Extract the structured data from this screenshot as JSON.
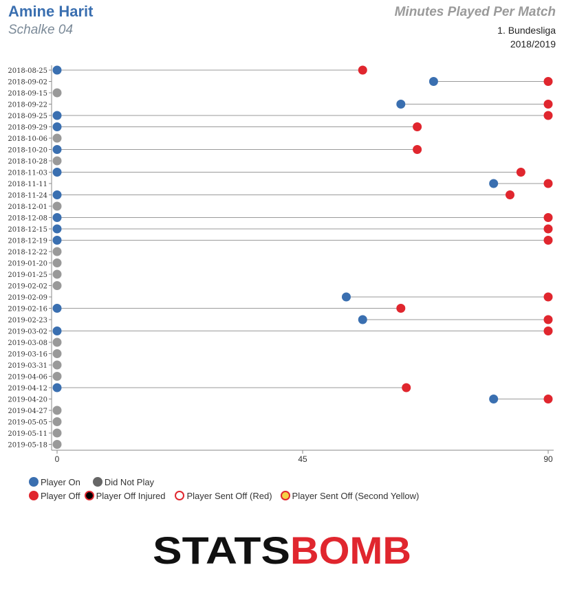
{
  "header": {
    "player": "Amine Harit",
    "team": "Schalke 04",
    "title": "Minutes Played Per Match",
    "competition": "1. Bundesliga",
    "season": "2018/2019"
  },
  "colors": {
    "on": "#3a6fb0",
    "off": "#e0262e",
    "dnp": "#999999",
    "line": "#9a9a9a",
    "yellow": "#f5d247"
  },
  "legend": [
    {
      "label": "Player On",
      "style": "on"
    },
    {
      "label": "Did Not Play",
      "style": "dnp"
    },
    {
      "label": "Player Off",
      "style": "off"
    },
    {
      "label": "Player Off Injured",
      "style": "injured"
    },
    {
      "label": "Player Sent Off (Red)",
      "style": "red-card"
    },
    {
      "label": "Player Sent Off (Second Yellow)",
      "style": "second-yellow"
    }
  ],
  "logo": {
    "part1": "STATS",
    "part2": "BOMB"
  },
  "chart_data": {
    "type": "dumbbell",
    "xlim": [
      0,
      90
    ],
    "xticks": [
      0,
      45,
      90
    ],
    "matches": [
      {
        "date": "2018-08-25",
        "on": 0,
        "off": 56
      },
      {
        "date": "2018-09-02",
        "on": 69,
        "off": 90
      },
      {
        "date": "2018-09-15",
        "on": null,
        "off": null
      },
      {
        "date": "2018-09-22",
        "on": 63,
        "off": 90
      },
      {
        "date": "2018-09-25",
        "on": 0,
        "off": 90
      },
      {
        "date": "2018-09-29",
        "on": 0,
        "off": 66
      },
      {
        "date": "2018-10-06",
        "on": null,
        "off": null
      },
      {
        "date": "2018-10-20",
        "on": 0,
        "off": 66
      },
      {
        "date": "2018-10-28",
        "on": null,
        "off": null
      },
      {
        "date": "2018-11-03",
        "on": 0,
        "off": 85
      },
      {
        "date": "2018-11-11",
        "on": 80,
        "off": 90
      },
      {
        "date": "2018-11-24",
        "on": 0,
        "off": 83
      },
      {
        "date": "2018-12-01",
        "on": null,
        "off": null
      },
      {
        "date": "2018-12-08",
        "on": 0,
        "off": 90
      },
      {
        "date": "2018-12-15",
        "on": 0,
        "off": 90
      },
      {
        "date": "2018-12-19",
        "on": 0,
        "off": 90
      },
      {
        "date": "2018-12-22",
        "on": null,
        "off": null
      },
      {
        "date": "2019-01-20",
        "on": null,
        "off": null
      },
      {
        "date": "2019-01-25",
        "on": null,
        "off": null
      },
      {
        "date": "2019-02-02",
        "on": null,
        "off": null
      },
      {
        "date": "2019-02-09",
        "on": 53,
        "off": 90
      },
      {
        "date": "2019-02-16",
        "on": 0,
        "off": 63
      },
      {
        "date": "2019-02-23",
        "on": 56,
        "off": 90
      },
      {
        "date": "2019-03-02",
        "on": 0,
        "off": 90
      },
      {
        "date": "2019-03-08",
        "on": null,
        "off": null
      },
      {
        "date": "2019-03-16",
        "on": null,
        "off": null
      },
      {
        "date": "2019-03-31",
        "on": null,
        "off": null
      },
      {
        "date": "2019-04-06",
        "on": null,
        "off": null
      },
      {
        "date": "2019-04-12",
        "on": 0,
        "off": 64
      },
      {
        "date": "2019-04-20",
        "on": 80,
        "off": 90
      },
      {
        "date": "2019-04-27",
        "on": null,
        "off": null
      },
      {
        "date": "2019-05-05",
        "on": null,
        "off": null
      },
      {
        "date": "2019-05-11",
        "on": null,
        "off": null
      },
      {
        "date": "2019-05-18",
        "on": null,
        "off": null
      }
    ]
  }
}
